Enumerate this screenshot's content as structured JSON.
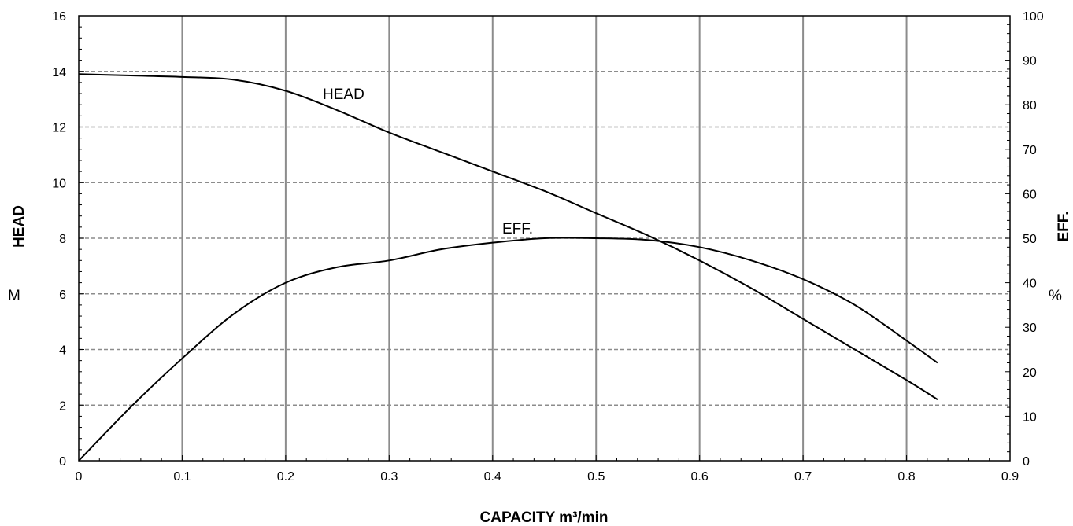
{
  "chart_data": {
    "type": "line",
    "xlabel": "CAPACITY m³/min",
    "ylabel_left": "HEAD",
    "ylabel_left_unit": "M",
    "ylabel_right": "EFF.",
    "ylabel_right_unit": "%",
    "xlim": [
      0,
      0.9
    ],
    "ylim_left": [
      0,
      16
    ],
    "ylim_right": [
      0,
      100
    ],
    "x_ticks": [
      "0",
      "0.1",
      "0.2",
      "0.3",
      "0.4",
      "0.5",
      "0.6",
      "0.7",
      "0.8",
      "0.9"
    ],
    "y_left_ticks": [
      "0",
      "2",
      "4",
      "6",
      "8",
      "10",
      "12",
      "14",
      "16"
    ],
    "y_right_ticks": [
      "0",
      "10",
      "20",
      "30",
      "40",
      "50",
      "60",
      "70",
      "80",
      "90",
      "100"
    ],
    "grid": {
      "vertical": "solid",
      "horizontal": "dashed"
    },
    "series": [
      {
        "name": "HEAD",
        "axis": "left",
        "x": [
          0,
          0.05,
          0.1,
          0.15,
          0.2,
          0.25,
          0.3,
          0.35,
          0.4,
          0.45,
          0.5,
          0.55,
          0.6,
          0.65,
          0.7,
          0.75,
          0.8,
          0.83
        ],
        "y": [
          13.9,
          13.85,
          13.8,
          13.7,
          13.3,
          12.6,
          11.8,
          11.1,
          10.4,
          9.7,
          8.9,
          8.1,
          7.2,
          6.2,
          5.1,
          4.0,
          2.9,
          2.2
        ]
      },
      {
        "name": "EFF.",
        "axis": "right",
        "x": [
          0,
          0.05,
          0.1,
          0.15,
          0.2,
          0.25,
          0.3,
          0.35,
          0.4,
          0.45,
          0.5,
          0.55,
          0.6,
          0.65,
          0.7,
          0.75,
          0.8,
          0.83
        ],
        "y": [
          0,
          12,
          23,
          33,
          40,
          43.5,
          45,
          47.5,
          49,
          50,
          50,
          49.6,
          48,
          45,
          40.8,
          35,
          27,
          22
        ]
      }
    ]
  }
}
